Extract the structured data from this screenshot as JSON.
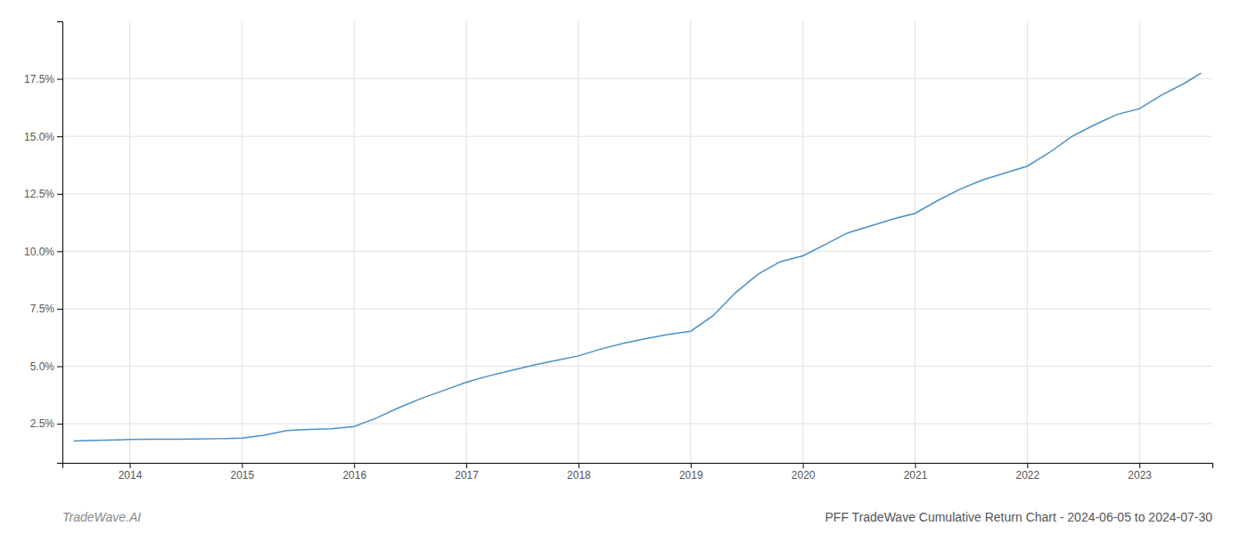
{
  "chart_data": {
    "type": "line",
    "title": "PFF TradeWave Cumulative Return Chart - 2024-06-05 to 2024-07-30",
    "annotations": [
      "TradeWave.AI"
    ],
    "x": [
      2013.5,
      2013.7,
      2013.9,
      2014.0,
      2014.2,
      2014.4,
      2014.6,
      2014.8,
      2015.0,
      2015.2,
      2015.4,
      2015.6,
      2015.8,
      2016.0,
      2016.2,
      2016.4,
      2016.6,
      2016.8,
      2017.0,
      2017.2,
      2017.4,
      2017.6,
      2017.8,
      2018.0,
      2018.2,
      2018.4,
      2018.6,
      2018.8,
      2019.0,
      2019.2,
      2019.4,
      2019.6,
      2019.8,
      2020.0,
      2020.2,
      2020.4,
      2020.6,
      2020.8,
      2021.0,
      2021.2,
      2021.4,
      2021.6,
      2021.8,
      2022.0,
      2022.2,
      2022.4,
      2022.6,
      2022.8,
      2023.0,
      2023.2,
      2023.4,
      2023.55
    ],
    "values": [
      1.75,
      1.78,
      1.8,
      1.82,
      1.83,
      1.83,
      1.84,
      1.85,
      1.87,
      2.0,
      2.2,
      2.25,
      2.28,
      2.38,
      2.75,
      3.2,
      3.6,
      3.95,
      4.3,
      4.58,
      4.82,
      5.05,
      5.25,
      5.45,
      5.75,
      6.0,
      6.2,
      6.38,
      6.52,
      7.2,
      8.2,
      9.0,
      9.55,
      9.8,
      10.3,
      10.8,
      11.1,
      11.4,
      11.65,
      12.2,
      12.7,
      13.1,
      13.4,
      13.7,
      14.3,
      15.0,
      15.5,
      15.95,
      16.2,
      16.8,
      17.3,
      17.75
    ],
    "color": "#4a90c4",
    "xlim": [
      2013.4,
      2023.65
    ],
    "ylim": [
      0.8,
      20.0
    ],
    "xticks": [
      2014,
      2015,
      2016,
      2017,
      2018,
      2019,
      2020,
      2021,
      2022,
      2023
    ],
    "yticks": [
      {
        "value": 2.5,
        "label": "2.5%"
      },
      {
        "value": 5.0,
        "label": "5.0%"
      },
      {
        "value": 7.5,
        "label": "7.5%"
      },
      {
        "value": 10.0,
        "label": "10.0%"
      },
      {
        "value": 12.5,
        "label": "12.5%"
      },
      {
        "value": 15.0,
        "label": "15.0%"
      },
      {
        "value": 17.5,
        "label": "17.5%"
      }
    ],
    "grid": true
  }
}
